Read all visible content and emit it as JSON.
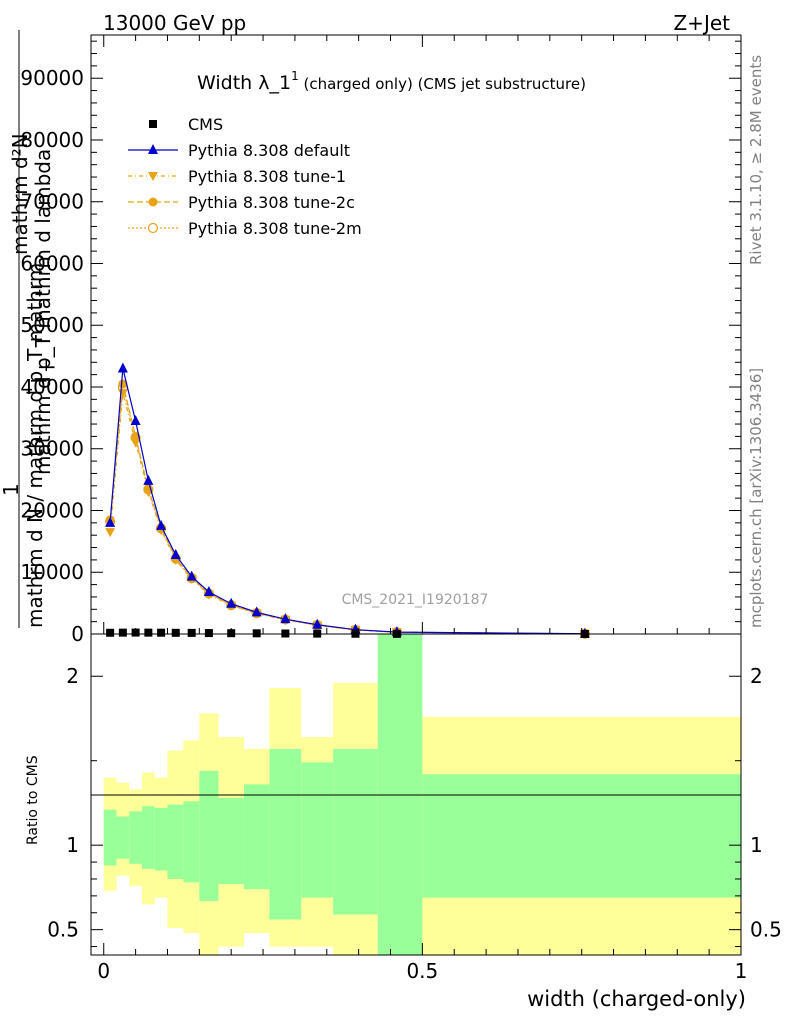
{
  "header": {
    "energy": "13000 GeV pp",
    "process": "Z+Jet",
    "watermark": "CMS_2021_I1920187",
    "rivet": "Rivet 3.1.10, ≥ 2.8M events",
    "mcplots": "mcplots.cern.ch [arXiv:1306.3436]"
  },
  "chart_data": [
    {
      "type": "line",
      "title_main": "Width λ_1",
      "title_sup": "1",
      "title_rest": " (charged only) (CMS jet substructure)",
      "ylabel_top": "mathrm d²N",
      "ylabel_mid": "mathrm d p_T mathrm d lambda",
      "ylabel_ratio_lhs": "1",
      "ylabel_bottom": "mathrm d N / mathrm d p_T mathrm",
      "xlim": [
        -0.02,
        1.0
      ],
      "ylim": [
        0,
        97000
      ],
      "yticks": [
        0,
        10000,
        20000,
        30000,
        40000,
        50000,
        60000,
        70000,
        80000,
        90000
      ],
      "ytick_labels": [
        "0",
        "10000",
        "20000",
        "30000",
        "40000",
        "50000",
        "60000",
        "70000",
        "80000",
        "90000"
      ],
      "legend_position": "top-left",
      "colors": {
        "cms": "#000000",
        "default": "#0000cc",
        "tune": "#e8a317",
        "tune2m": "#e8a317"
      },
      "x": [
        0.01,
        0.03,
        0.05,
        0.07,
        0.09,
        0.113,
        0.138,
        0.165,
        0.2,
        0.24,
        0.285,
        0.335,
        0.395,
        0.46,
        0.755
      ],
      "series": [
        {
          "name": "CMS",
          "marker": "square",
          "values": [
            200,
            220,
            230,
            220,
            210,
            190,
            180,
            150,
            130,
            110,
            80,
            60,
            40,
            20,
            0
          ]
        },
        {
          "name": "Pythia 8.308 default",
          "marker": "triangle-up",
          "values": [
            18000,
            43000,
            34500,
            24800,
            17500,
            12800,
            9300,
            6800,
            4900,
            3500,
            2400,
            1500,
            700,
            300,
            40
          ]
        },
        {
          "name": "Pythia 8.308 tune-1",
          "marker": "triangle-down",
          "values": [
            16500,
            39000,
            31000,
            23000,
            16800,
            12000,
            8900,
            6400,
            4600,
            3300,
            2300,
            1400,
            650,
            280,
            40
          ]
        },
        {
          "name": "Pythia 8.308 tune-2c",
          "marker": "circle",
          "values": [
            18500,
            40500,
            32000,
            23500,
            17200,
            12300,
            9100,
            6600,
            4700,
            3400,
            2350,
            1450,
            680,
            290,
            40
          ]
        },
        {
          "name": "Pythia 8.308 tune-2m",
          "marker": "circle-open",
          "values": [
            18200,
            40000,
            31800,
            23400,
            17100,
            12200,
            9050,
            6550,
            4680,
            3380,
            2340,
            1440,
            670,
            285,
            40
          ]
        }
      ]
    },
    {
      "type": "area",
      "ylabel": "Ratio to CMS",
      "xlabel": "width (charged-only)",
      "xlim": [
        -0.02,
        1.0
      ],
      "ylim": [
        0.35,
        2.25
      ],
      "yticks": [
        0.5,
        1,
        2
      ],
      "ytick_labels": [
        "0.5",
        "1",
        "2"
      ],
      "xticks": [
        0,
        0.5,
        1
      ],
      "xtick_labels": [
        "0",
        "0.5",
        "1"
      ],
      "colors": {
        "stat": "#99ff99",
        "total": "#ffff99"
      },
      "bins": [
        {
          "lo": 0.0,
          "hi": 0.02,
          "stat": [
            0.88,
            1.21
          ],
          "total": [
            0.73,
            1.4
          ]
        },
        {
          "lo": 0.02,
          "hi": 0.04,
          "stat": [
            0.92,
            1.17
          ],
          "total": [
            0.82,
            1.37
          ]
        },
        {
          "lo": 0.04,
          "hi": 0.06,
          "stat": [
            0.89,
            1.2
          ],
          "total": [
            0.76,
            1.33
          ]
        },
        {
          "lo": 0.06,
          "hi": 0.08,
          "stat": [
            0.86,
            1.23
          ],
          "total": [
            0.65,
            1.43
          ]
        },
        {
          "lo": 0.08,
          "hi": 0.1,
          "stat": [
            0.85,
            1.22
          ],
          "total": [
            0.69,
            1.4
          ]
        },
        {
          "lo": 0.1,
          "hi": 0.125,
          "stat": [
            0.8,
            1.24
          ],
          "total": [
            0.51,
            1.56
          ]
        },
        {
          "lo": 0.125,
          "hi": 0.15,
          "stat": [
            0.78,
            1.26
          ],
          "total": [
            0.48,
            1.62
          ]
        },
        {
          "lo": 0.15,
          "hi": 0.18,
          "stat": [
            0.67,
            1.44
          ],
          "total": [
            0.35,
            1.78
          ]
        },
        {
          "lo": 0.18,
          "hi": 0.22,
          "stat": [
            0.77,
            1.28
          ],
          "total": [
            0.4,
            1.64
          ]
        },
        {
          "lo": 0.22,
          "hi": 0.26,
          "stat": [
            0.74,
            1.36
          ],
          "total": [
            0.48,
            1.57
          ]
        },
        {
          "lo": 0.26,
          "hi": 0.31,
          "stat": [
            0.56,
            1.57
          ],
          "total": [
            0.4,
            1.93
          ]
        },
        {
          "lo": 0.31,
          "hi": 0.36,
          "stat": [
            0.69,
            1.49
          ],
          "total": [
            0.4,
            1.64
          ]
        },
        {
          "lo": 0.36,
          "hi": 0.43,
          "stat": [
            0.59,
            1.57
          ],
          "total": [
            0.35,
            1.96
          ]
        },
        {
          "lo": 0.43,
          "hi": 0.5,
          "stat": [
            0.35,
            2.25
          ],
          "total": [
            0.35,
            2.25
          ]
        },
        {
          "lo": 0.5,
          "hi": 1.0,
          "stat": [
            0.69,
            1.42
          ],
          "total": [
            0.35,
            1.76
          ]
        }
      ]
    }
  ]
}
